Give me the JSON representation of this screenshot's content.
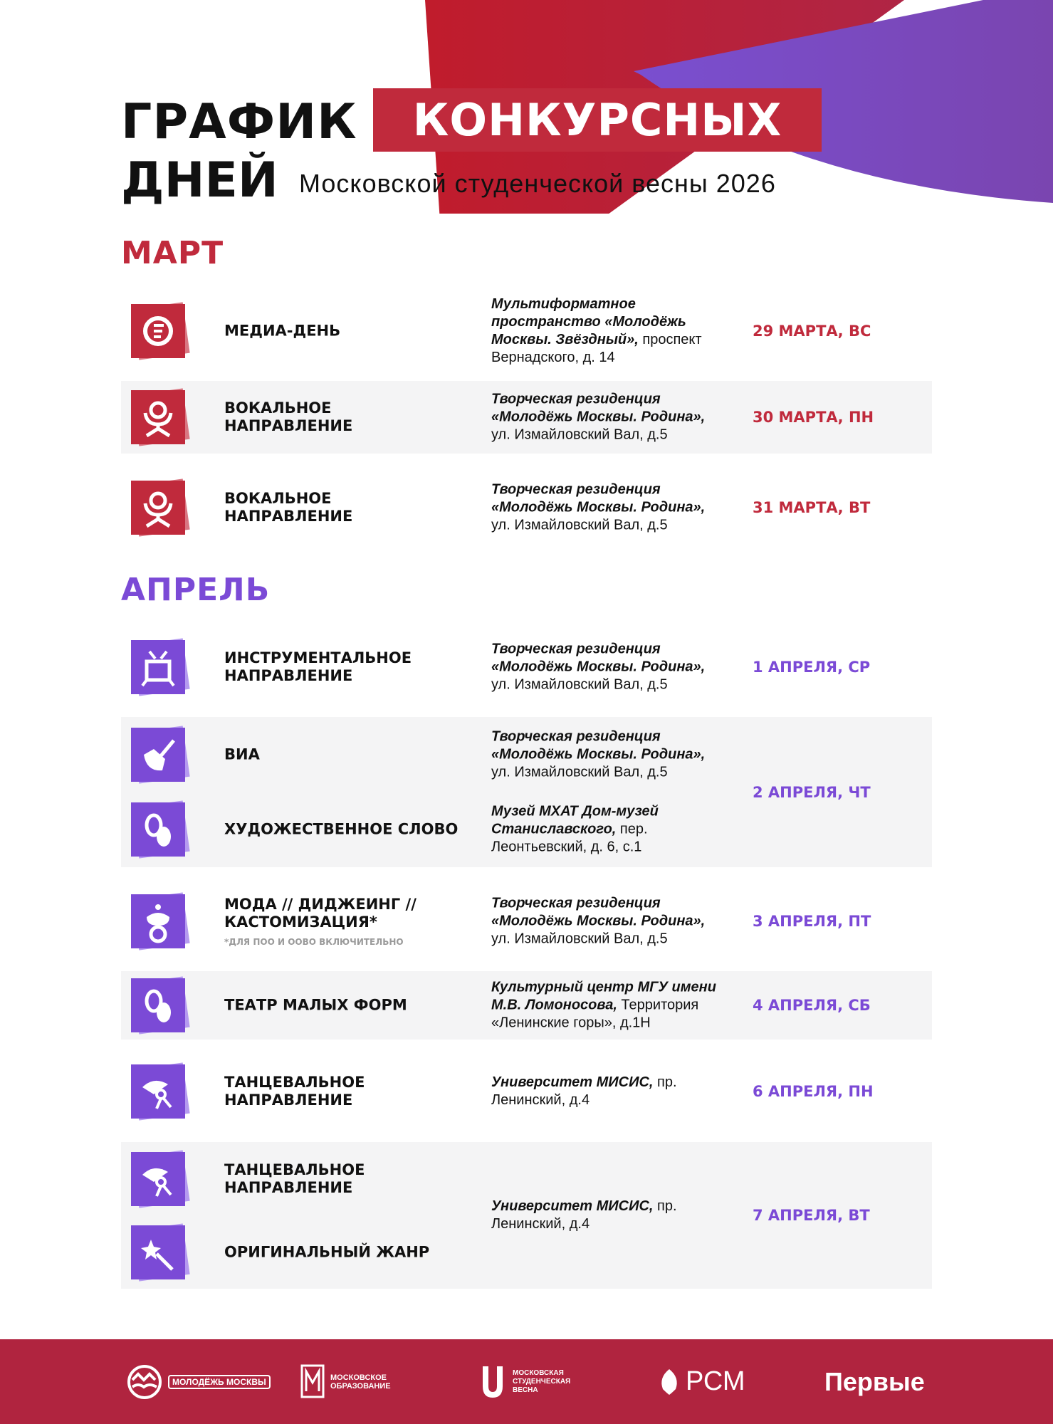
{
  "header": {
    "title_line1": "ГРАФИК",
    "title_highlight": "КОНКУРСНЫХ",
    "title_line2": "ДНЕЙ",
    "subtitle": "Московской студенческой весны 2026"
  },
  "colors": {
    "red": "#c02a3c",
    "purple": "#7b4ad6",
    "footer": "#b0243f"
  },
  "months": [
    {
      "label": "МАРТ"
    },
    {
      "label": "АПРЕЛЬ"
    }
  ],
  "rows": [
    {
      "entries": [
        {
          "icon": "media-icon",
          "name": "МЕДИА-ДЕНЬ",
          "venue_bold": "Мультиформатное пространство «Молодёжь Москвы. Звёздный»,",
          "venue_rest": " проспект Вернадского, д. 14"
        }
      ],
      "date": "29 МАРТА, ВС"
    },
    {
      "entries": [
        {
          "icon": "vocal-icon",
          "name": "ВОКАЛЬНОЕ НАПРАВЛЕНИЕ",
          "venue_bold": "Творческая резиденция «Молодёжь Москвы. Родина»,",
          "venue_rest": " ул. Измайловский Вал, д.5"
        }
      ],
      "date": "30 МАРТА, ПН"
    },
    {
      "entries": [
        {
          "icon": "vocal-icon",
          "name": "ВОКАЛЬНОЕ НАПРАВЛЕНИЕ",
          "venue_bold": "Творческая резиденция «Молодёжь Москвы. Родина»,",
          "venue_rest": " ул. Измайловский Вал, д.5"
        }
      ],
      "date": "31 МАРТА, ВТ"
    },
    {
      "entries": [
        {
          "icon": "instrument-icon",
          "name": "ИНСТРУМЕНТАЛЬНОЕ НАПРАВЛЕНИЕ",
          "venue_bold": "Творческая резиденция «Молодёжь Москвы. Родина»,",
          "venue_rest": " ул. Измайловский Вал, д.5"
        }
      ],
      "date": "1 АПРЕЛЯ, СР"
    },
    {
      "entries": [
        {
          "icon": "guitar-icon",
          "name": "ВИА",
          "venue_bold": "Творческая резиденция «Молодёжь Москвы. Родина»,",
          "venue_rest": " ул. Измайловский Вал, д.5"
        },
        {
          "icon": "masks-icon",
          "name": "ХУДОЖЕСТВЕННОЕ СЛОВО",
          "venue_bold": "Музей МХАТ Дом-музей Станиславского,",
          "venue_rest": " пер. Леонтьевский, д. 6, с.1"
        }
      ],
      "date": "2 АПРЕЛЯ, ЧТ"
    },
    {
      "entries": [
        {
          "icon": "fashion-icon",
          "name": "МОДА // ДИДЖЕИНГ // КАСТОМИЗАЦИЯ*",
          "note": "*ДЛЯ ПОО И ООВО ВКЛЮЧИТЕЛЬНО",
          "venue_bold": "Творческая резиденция «Молодёжь Москвы. Родина»,",
          "venue_rest": " ул. Измайловский Вал, д.5"
        }
      ],
      "date": "3 АПРЕЛЯ, ПТ"
    },
    {
      "entries": [
        {
          "icon": "masks-icon",
          "name": "ТЕАТР МАЛЫХ ФОРМ",
          "venue_bold": "Культурный центр МГУ имени М.В. Ломоносова,",
          "venue_rest": " Территория «Ленинские горы», д.1Н"
        }
      ],
      "date": "4 АПРЕЛЯ, СБ"
    },
    {
      "entries": [
        {
          "icon": "dance-icon",
          "name": "ТАНЦЕВАЛЬНОЕ НАПРАВЛЕНИЕ",
          "venue_bold": "Университет МИСИС,",
          "venue_rest": " пр. Ленинский, д.4"
        }
      ],
      "date": "6 АПРЕЛЯ, ПН"
    },
    {
      "entries": [
        {
          "icon": "dance-icon",
          "name": "ТАНЦЕВАЛЬНОЕ НАПРАВЛЕНИЕ",
          "venue_bold": "Университет МИСИС,",
          "venue_rest": " пр. Ленинский, д.4"
        },
        {
          "icon": "magic-icon",
          "name": "ОРИГИНАЛЬНЫЙ ЖАНР"
        }
      ],
      "date": "7 АПРЕЛЯ, ВТ"
    }
  ],
  "footer": {
    "logos": [
      {
        "name": "МОЛОДЁЖЬ МОСКВЫ"
      },
      {
        "name": "МОСКОВСКОЕ ОБРАЗОВАНИЕ"
      },
      {
        "name": "МОСКОВСКАЯ СТУДЕНЧЕСКАЯ ВЕСНА"
      },
      {
        "name": "РСМ"
      },
      {
        "name": "Первые"
      }
    ]
  }
}
